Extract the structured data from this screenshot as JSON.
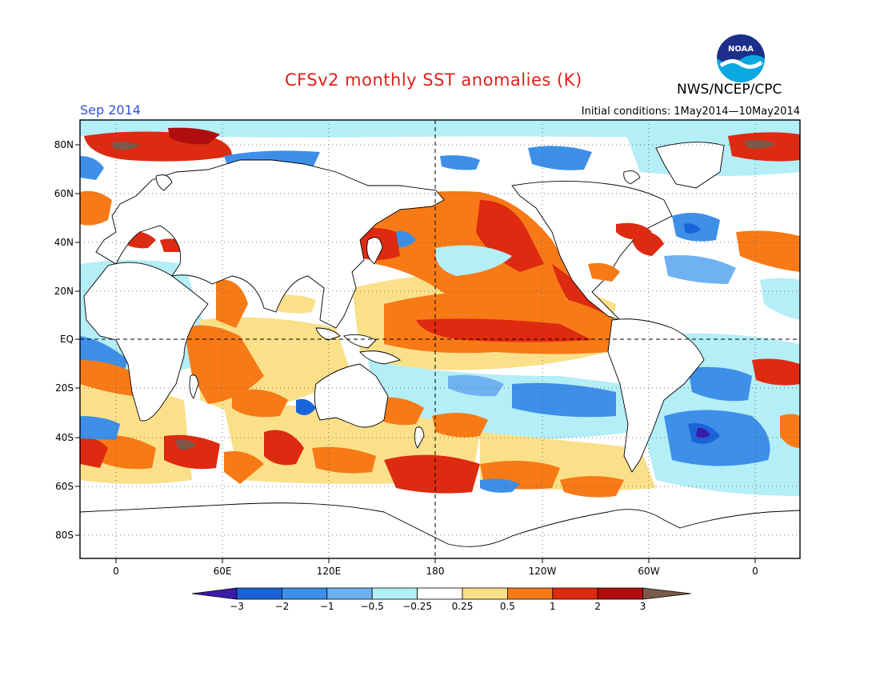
{
  "title": "CFSv2 monthly SST anomalies (K)",
  "organization": "NWS/NCEP/CPC",
  "logo_text": "NOAA",
  "month_label": "Sep 2014",
  "initial_conditions": "Initial conditions: 1May2014—10May2014",
  "map": {
    "lat_labels": [
      "80N",
      "60N",
      "40N",
      "20N",
      "EQ",
      "20S",
      "40S",
      "60S",
      "80S"
    ],
    "lon_labels": [
      "0",
      "60E",
      "120E",
      "180",
      "120W",
      "60W",
      "0"
    ]
  },
  "colorbar": {
    "labels": [
      "−3",
      "−2",
      "−1",
      "−0.5",
      "−0.25",
      "0.25",
      "0.5",
      "1",
      "2",
      "3"
    ],
    "colors": [
      "#3b1ba8",
      "#1a64d9",
      "#3d8fe8",
      "#6fb2f2",
      "#b4eef7",
      "#ffffff",
      "#fbe08a",
      "#f77a16",
      "#de2a10",
      "#b00e0e",
      "#7b5a4a"
    ]
  },
  "palette": {
    "strong_cold": "#1a64d9",
    "cold": "#3d8fe8",
    "weak_cold": "#b4eef7",
    "weak_warm": "#fbe08a",
    "warm": "#f77a16",
    "strong_warm": "#de2a10",
    "very_warm": "#b00e0e",
    "land": "#ffffff",
    "coast": "#000000"
  }
}
